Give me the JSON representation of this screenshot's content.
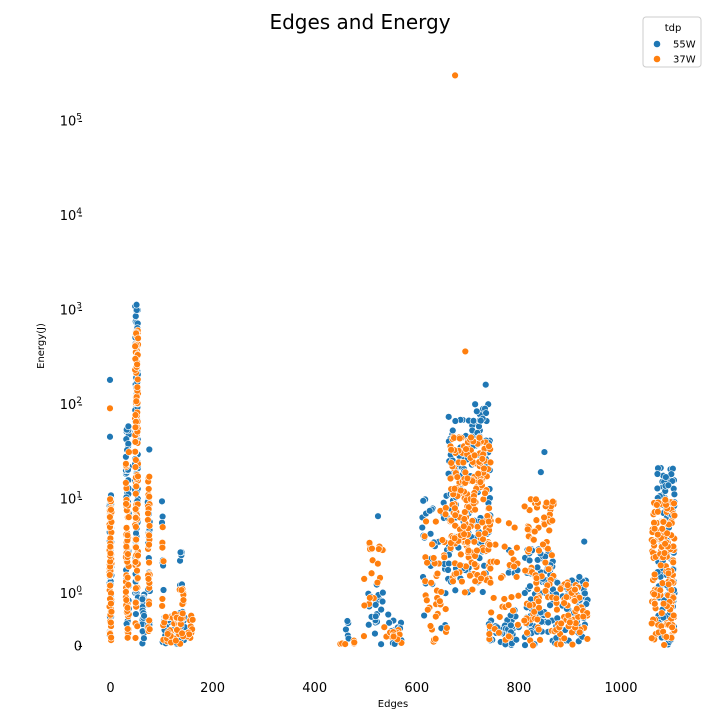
{
  "chart_data": {
    "type": "scatter",
    "title": "Edges and Energy",
    "xlabel": "Edges",
    "ylabel": "Energy(J)",
    "yscale": "symlog",
    "xlim": [
      -30,
      1120
    ],
    "ylim": [
      0,
      300000
    ],
    "x_ticks": [
      0,
      200,
      400,
      600,
      800,
      1000
    ],
    "x_tick_labels": [
      "0",
      "200",
      "400",
      "600",
      "800",
      "1000"
    ],
    "y_ticks": [
      0,
      1,
      10,
      100,
      1000,
      10000,
      100000
    ],
    "y_tick_labels": [
      {
        "base": "0",
        "exp": ""
      },
      {
        "base": "10",
        "exp": "0"
      },
      {
        "base": "10",
        "exp": "1"
      },
      {
        "base": "10",
        "exp": "2"
      },
      {
        "base": "10",
        "exp": "3"
      },
      {
        "base": "10",
        "exp": "4"
      },
      {
        "base": "10",
        "exp": "5"
      }
    ],
    "grid": false,
    "legend": {
      "title": "tdp",
      "placement": "top-right"
    },
    "series": [
      {
        "name": "55W",
        "color": "#1f77b4",
        "clusters": [
          {
            "x": [
              -2,
              2
            ],
            "y": [
              0,
              12
            ],
            "n": 70
          },
          {
            "x": [
              30,
              36
            ],
            "y": [
              0,
              55
            ],
            "n": 50
          },
          {
            "x": [
              48,
              54
            ],
            "y": [
              0,
              1150
            ],
            "n": 100
          },
          {
            "x": [
              62,
              66
            ],
            "y": [
              0,
              1
            ],
            "n": 20
          },
          {
            "x": [
              73,
              77
            ],
            "y": [
              0,
              11
            ],
            "n": 25
          },
          {
            "x": [
              100,
              104
            ],
            "y": [
              0,
              10
            ],
            "n": 8
          },
          {
            "x": [
              105,
              160
            ],
            "y": [
              0,
              0.6
            ],
            "n": 40
          },
          {
            "x": [
              136,
              142
            ],
            "y": [
              0,
              3.5
            ],
            "n": 15
          },
          {
            "x": [
              460,
              470
            ],
            "y": [
              0,
              0.5
            ],
            "n": 5
          },
          {
            "x": [
              505,
              535
            ],
            "y": [
              0,
              1.4
            ],
            "n": 20
          },
          {
            "x": [
              540,
              570
            ],
            "y": [
              0,
              0.6
            ],
            "n": 15
          },
          {
            "x": [
              610,
              660
            ],
            "y": [
              0,
              11
            ],
            "n": 30
          },
          {
            "x": [
              660,
              745
            ],
            "y": [
              1,
              100
            ],
            "n": 150
          },
          {
            "x": [
              740,
              790
            ],
            "y": [
              0,
              0.5
            ],
            "n": 30
          },
          {
            "x": [
              780,
              800
            ],
            "y": [
              0,
              3
            ],
            "n": 15
          },
          {
            "x": [
              810,
              870
            ],
            "y": [
              0,
              3
            ],
            "n": 80
          },
          {
            "x": [
              870,
              935
            ],
            "y": [
              0,
              1.5
            ],
            "n": 60
          },
          {
            "x": [
              1070,
              1105
            ],
            "y": [
              0,
              22
            ],
            "n": 120
          }
        ],
        "points": [
          {
            "x": -1,
            "y": 180
          },
          {
            "x": -1,
            "y": 45
          },
          {
            "x": 35,
            "y": 58
          },
          {
            "x": 76,
            "y": 33
          },
          {
            "x": 524,
            "y": 6.5
          },
          {
            "x": 735,
            "y": 160
          },
          {
            "x": 850,
            "y": 31
          },
          {
            "x": 843,
            "y": 19
          },
          {
            "x": 928,
            "y": 3.5
          }
        ]
      },
      {
        "name": "37W",
        "color": "#ff7f0e",
        "clusters": [
          {
            "x": [
              -2,
              2
            ],
            "y": [
              0,
              10
            ],
            "n": 70
          },
          {
            "x": [
              30,
              36
            ],
            "y": [
              0,
              30
            ],
            "n": 60
          },
          {
            "x": [
              48,
              54
            ],
            "y": [
              0,
              600
            ],
            "n": 110
          },
          {
            "x": [
              73,
              77
            ],
            "y": [
              0,
              17
            ],
            "n": 30
          },
          {
            "x": [
              100,
              104
            ],
            "y": [
              0,
              5
            ],
            "n": 8
          },
          {
            "x": [
              105,
              165
            ],
            "y": [
              0,
              0.6
            ],
            "n": 40
          },
          {
            "x": [
              135,
              143
            ],
            "y": [
              0,
              1.2
            ],
            "n": 15
          },
          {
            "x": [
              450,
              480
            ],
            "y": [
              0,
              0.1
            ],
            "n": 6
          },
          {
            "x": [
              495,
              540
            ],
            "y": [
              0,
              3.5
            ],
            "n": 20
          },
          {
            "x": [
              540,
              570
            ],
            "y": [
              0,
              0.3
            ],
            "n": 12
          },
          {
            "x": [
              615,
              660
            ],
            "y": [
              0,
              8
            ],
            "n": 40
          },
          {
            "x": [
              665,
              745
            ],
            "y": [
              1,
              45
            ],
            "n": 220
          },
          {
            "x": [
              740,
              800
            ],
            "y": [
              0,
              6
            ],
            "n": 40
          },
          {
            "x": [
              810,
              870
            ],
            "y": [
              0,
              10
            ],
            "n": 90
          },
          {
            "x": [
              870,
              935
            ],
            "y": [
              0,
              1.3
            ],
            "n": 60
          },
          {
            "x": [
              1060,
              1105
            ],
            "y": [
              0,
              10
            ],
            "n": 150
          }
        ],
        "points": [
          {
            "x": 675,
            "y": 300000
          },
          {
            "x": 695,
            "y": 360
          },
          {
            "x": -1,
            "y": 90
          },
          {
            "x": 36,
            "y": 31
          },
          {
            "x": 76,
            "y": 17
          }
        ]
      }
    ]
  }
}
